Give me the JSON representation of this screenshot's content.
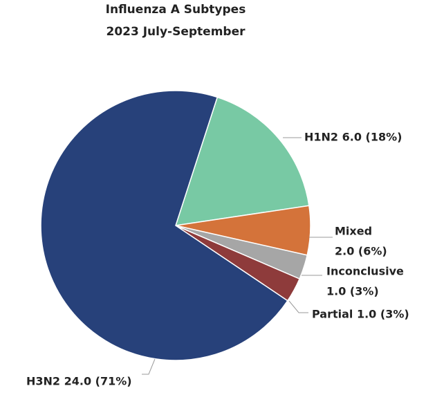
{
  "chart_data": {
    "type": "pie",
    "title_lines": [
      "Influenza A Subtypes",
      "2023 July-September"
    ],
    "start_angle_deg": 18,
    "slices": [
      {
        "label": "H1N2",
        "value": 6.0,
        "percent": "18%",
        "color": "#78C9A4",
        "label_lines": [
          "H1N2 6.0 (18%)"
        ]
      },
      {
        "label": "Mixed",
        "value": 2.0,
        "percent": "6%",
        "color": "#D4733A",
        "label_lines": [
          "Mixed",
          "2.0 (6%)"
        ]
      },
      {
        "label": "Inconclusive",
        "value": 1.0,
        "percent": "3%",
        "color": "#A6A6A6",
        "label_lines": [
          "Inconclusive",
          "1.0 (3%)"
        ]
      },
      {
        "label": "Partial",
        "value": 1.0,
        "percent": "3%",
        "color": "#8E3B3B",
        "label_lines": [
          "Partial 1.0 (3%)"
        ]
      },
      {
        "label": "H3N2",
        "value": 24.0,
        "percent": "71%",
        "color": "#27417A",
        "label_lines": [
          "H3N2 24.0 (71%)"
        ]
      }
    ]
  }
}
